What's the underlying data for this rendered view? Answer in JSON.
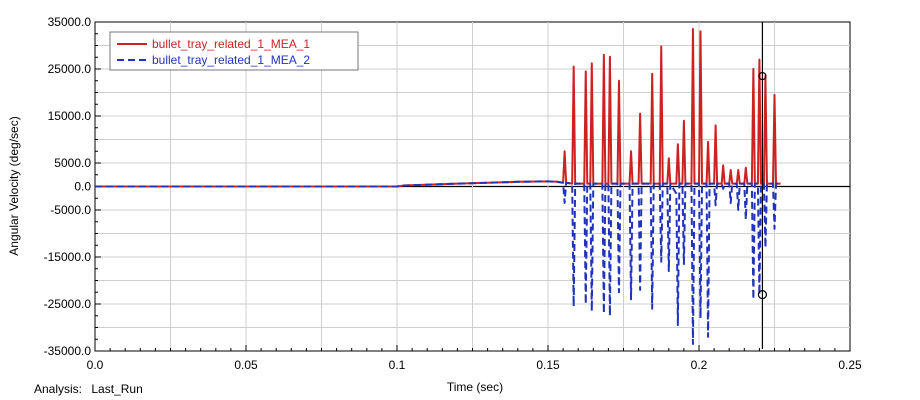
{
  "footer": {
    "analysis_label": "Analysis:",
    "analysis_value": "Last_Run"
  },
  "chart_data": {
    "type": "line",
    "title": "",
    "xlabel": "Time (sec)",
    "ylabel": "Angular Velocity (deg/sec)",
    "xlim": [
      0.0,
      0.25
    ],
    "ylim": [
      -35000.0,
      35000.0
    ],
    "x_tick_labels": [
      "0.0",
      "0.05",
      "0.1",
      "0.15",
      "0.2",
      "0.25"
    ],
    "y_tick_labels": [
      "35000.0",
      "25000.0",
      "15000.0",
      "5000.0",
      "0.0",
      "-5000.0",
      "-15000.0",
      "-25000.0",
      "-35000.0"
    ],
    "grid": true,
    "legend_position": "top-left",
    "cursor_line_x": 0.221,
    "series": [
      {
        "name": "bullet_tray_related_1_MEA_1",
        "color": "#cc2222",
        "style": "solid",
        "x": [
          0.0,
          0.05,
          0.1,
          0.102,
          0.12,
          0.14,
          0.15,
          0.153,
          0.155,
          0.1555,
          0.156,
          0.158,
          0.1585,
          0.159,
          0.162,
          0.1625,
          0.163,
          0.164,
          0.1645,
          0.165,
          0.168,
          0.1685,
          0.169,
          0.17,
          0.1705,
          0.171,
          0.173,
          0.1735,
          0.174,
          0.177,
          0.1775,
          0.178,
          0.18,
          0.1805,
          0.181,
          0.184,
          0.1845,
          0.185,
          0.187,
          0.1875,
          0.188,
          0.1895,
          0.19,
          0.1905,
          0.1925,
          0.193,
          0.1935,
          0.1945,
          0.195,
          0.1955,
          0.1975,
          0.198,
          0.1985,
          0.2,
          0.2005,
          0.201,
          0.2025,
          0.203,
          0.2035,
          0.205,
          0.2055,
          0.206,
          0.2075,
          0.208,
          0.2085,
          0.21,
          0.2105,
          0.211,
          0.2125,
          0.213,
          0.2135,
          0.215,
          0.2155,
          0.216,
          0.2175,
          0.218,
          0.2185,
          0.2195,
          0.22,
          0.2205,
          0.2215,
          0.222,
          0.2225,
          0.2245,
          0.225,
          0.2255,
          0.227
        ],
        "y": [
          0,
          0,
          0,
          200,
          600,
          1000,
          1100,
          1000,
          800,
          7500,
          800,
          600,
          25500,
          600,
          600,
          24500,
          600,
          600,
          26200,
          600,
          600,
          28000,
          600,
          600,
          27600,
          600,
          600,
          22500,
          600,
          600,
          7500,
          600,
          600,
          15500,
          600,
          600,
          24000,
          600,
          600,
          29800,
          600,
          600,
          6000,
          600,
          600,
          9000,
          600,
          600,
          14000,
          600,
          600,
          33500,
          600,
          600,
          33000,
          600,
          600,
          9500,
          600,
          600,
          13000,
          600,
          600,
          4500,
          600,
          600,
          3500,
          600,
          600,
          3500,
          600,
          600,
          4000,
          600,
          600,
          25000,
          600,
          600,
          27000,
          600,
          600,
          23500,
          600,
          600,
          19500,
          600,
          600
        ]
      },
      {
        "name": "bullet_tray_related_1_MEA_2",
        "color": "#2233bb",
        "style": "dashed",
        "x": [
          0.0,
          0.05,
          0.1,
          0.102,
          0.12,
          0.14,
          0.15,
          0.153,
          0.155,
          0.1555,
          0.156,
          0.158,
          0.1585,
          0.159,
          0.162,
          0.1625,
          0.163,
          0.164,
          0.1645,
          0.165,
          0.168,
          0.1685,
          0.169,
          0.17,
          0.1705,
          0.171,
          0.173,
          0.1735,
          0.174,
          0.177,
          0.1775,
          0.178,
          0.18,
          0.1805,
          0.181,
          0.184,
          0.1845,
          0.185,
          0.187,
          0.1875,
          0.188,
          0.1895,
          0.19,
          0.1905,
          0.1925,
          0.193,
          0.1935,
          0.1945,
          0.195,
          0.1955,
          0.1975,
          0.198,
          0.1985,
          0.2,
          0.2005,
          0.201,
          0.2025,
          0.203,
          0.2035,
          0.205,
          0.2055,
          0.206,
          0.2075,
          0.208,
          0.2085,
          0.21,
          0.2105,
          0.211,
          0.2125,
          0.213,
          0.2135,
          0.215,
          0.2155,
          0.216,
          0.2175,
          0.218,
          0.2185,
          0.2195,
          0.22,
          0.2205,
          0.2215,
          0.222,
          0.2225,
          0.2245,
          0.225,
          0.2255,
          0.227
        ],
        "y": [
          0,
          0,
          0,
          200,
          600,
          1000,
          1100,
          1000,
          800,
          -3500,
          800,
          600,
          -25500,
          600,
          600,
          -25000,
          600,
          600,
          -26500,
          600,
          600,
          -27000,
          600,
          600,
          -27500,
          600,
          600,
          -22500,
          600,
          600,
          -24000,
          600,
          600,
          -22000,
          600,
          600,
          -26000,
          600,
          600,
          -16000,
          600,
          600,
          -18000,
          600,
          -1500,
          -29500,
          600,
          600,
          -16500,
          600,
          600,
          -33500,
          600,
          600,
          -28000,
          600,
          600,
          -32000,
          600,
          600,
          -4000,
          600,
          600,
          -500,
          600,
          600,
          -3500,
          600,
          600,
          -5000,
          600,
          600,
          -7000,
          600,
          600,
          -24000,
          600,
          600,
          -23000,
          600,
          600,
          -13000,
          600,
          600,
          -9000,
          600,
          600
        ]
      }
    ]
  }
}
